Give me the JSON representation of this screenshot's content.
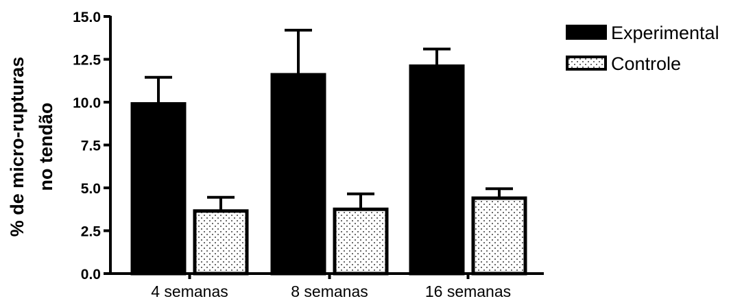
{
  "chart_data": {
    "type": "bar",
    "title": "",
    "xlabel": "",
    "ylabel_lines": [
      "% de micro-rupturas",
      "no tendão"
    ],
    "categories": [
      "4 semanas",
      "8 semanas",
      "16 semanas"
    ],
    "ylim": [
      0,
      15
    ],
    "yticks": [
      "0.0",
      "2.5",
      "5.0",
      "7.5",
      "10.0",
      "12.5",
      "15.0"
    ],
    "grid": false,
    "legend_position": "top-right",
    "series": [
      {
        "name": "Experimental",
        "fill": "solid-black",
        "values": [
          9.9,
          11.6,
          12.1
        ],
        "error_upper": [
          1.55,
          2.6,
          1.0
        ]
      },
      {
        "name": "Controle",
        "fill": "dotted",
        "values": [
          3.65,
          3.75,
          4.4
        ],
        "error_upper": [
          0.8,
          0.9,
          0.55
        ]
      }
    ],
    "colors": {
      "bar_stroke": "#000000",
      "solid_fill": "#000000",
      "dot_color": "#000000",
      "background": "#ffffff"
    }
  }
}
